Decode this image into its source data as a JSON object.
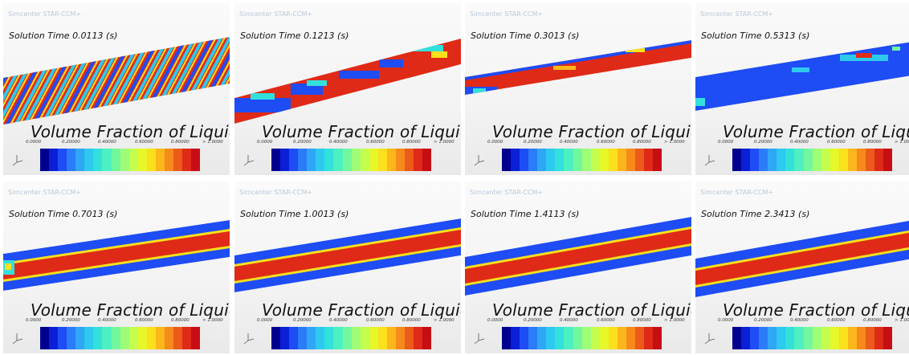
{
  "brand": "Simcenter STAR-CCM+",
  "scalar_title": "Volume Fraction of Liquid",
  "colorbar": {
    "tick_labels": [
      "0.0000",
      "0.20000",
      "0.40000",
      "0.60000",
      "0.80000",
      "> 1.0000"
    ],
    "colors": [
      "#00008f",
      "#0a1fd6",
      "#1e4cf5",
      "#2b7cf8",
      "#2fa6f6",
      "#2dc9ef",
      "#32e0dc",
      "#4df0c0",
      "#73f79e",
      "#9ffc77",
      "#c4fd4d",
      "#e6f72a",
      "#fbe01c",
      "#fbb71b",
      "#f68a1a",
      "#ec5b19",
      "#df2a17",
      "#c60e14"
    ]
  },
  "panels": [
    {
      "time_label": "Solution Time 0.0113 (s)"
    },
    {
      "time_label": "Solution Time 0.1213 (s)"
    },
    {
      "time_label": "Solution Time 0.3013 (s)"
    },
    {
      "time_label": "Solution Time 0.5313 (s)"
    },
    {
      "time_label": "Solution Time 0.7013 (s)"
    },
    {
      "time_label": "Solution Time 1.0013 (s)"
    },
    {
      "time_label": "Solution Time 1.4113 (s)"
    },
    {
      "time_label": "Solution Time 2.3413 (s)"
    }
  ]
}
